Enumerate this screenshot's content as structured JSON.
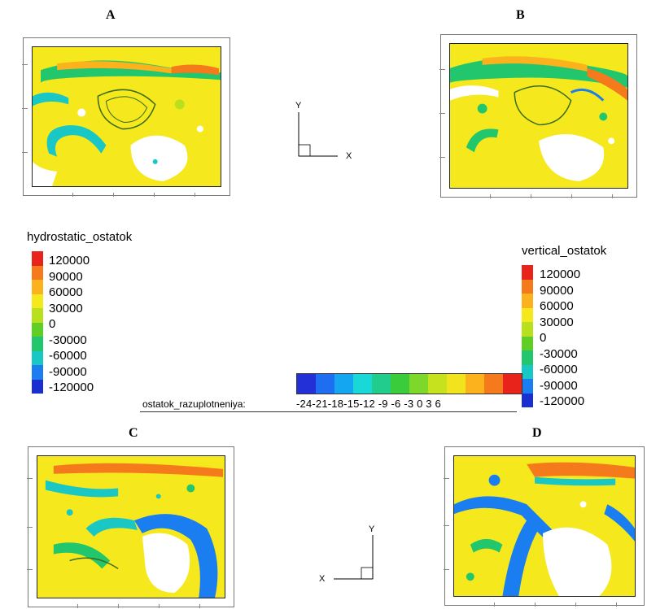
{
  "panel_labels": {
    "a": "A",
    "b": "B",
    "c": "C",
    "d": "D"
  },
  "axes": {
    "y": "Y",
    "x": "X"
  },
  "legend_hydrostatic": {
    "title": "hydrostatic_ostatok",
    "values": [
      "120000",
      "90000",
      "60000",
      "30000",
      "0",
      "-30000",
      "-60000",
      "-90000",
      "-120000"
    ],
    "colors": [
      "#e8231b",
      "#f57a1c",
      "#fbb21d",
      "#f5e81c",
      "#b8e01c",
      "#5fcf26",
      "#22c76d",
      "#19c7c4",
      "#1a7ef0",
      "#1a2fcf"
    ]
  },
  "legend_vertical": {
    "title": "vertical_ostatok",
    "values": [
      "120000",
      "90000",
      "60000",
      "30000",
      "0",
      "-30000",
      "-60000",
      "-90000",
      "-120000"
    ],
    "colors": [
      "#e8231b",
      "#f57a1c",
      "#fbb21d",
      "#f5e81c",
      "#b8e01c",
      "#5fcf26",
      "#22c76d",
      "#19c7c4",
      "#1a7ef0",
      "#1a2fcf"
    ]
  },
  "legend_razuplotneniya": {
    "title": "ostatok_razuplotneniya:",
    "values": "-24-21-18-15-12 -9  -6  -3  0   3   6",
    "colors": [
      "#2330d8",
      "#1e6ef2",
      "#14a6f0",
      "#18d8d8",
      "#22cc8c",
      "#3acc3a",
      "#7ed82a",
      "#c6e21e",
      "#f2e41c",
      "#fbb21d",
      "#f57a1c",
      "#e8231b"
    ]
  }
}
